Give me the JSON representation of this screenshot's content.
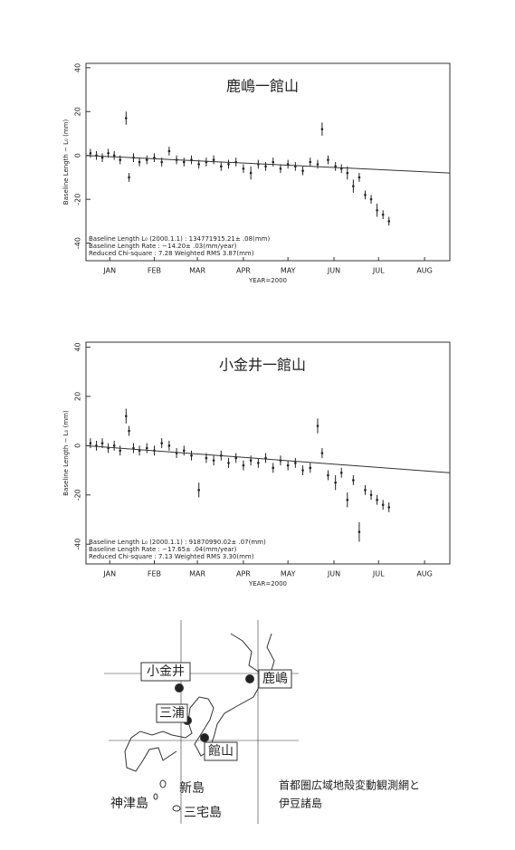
{
  "chart_data": [
    {
      "type": "scatter",
      "title": "鹿嶋一館山",
      "ylabel": "Baseline Length − L₀ (mm)",
      "xlabel": "YEAR=2000",
      "annotations": [
        "Baseline Length L₀ (2000.1.1) :    134771915.21± .08(mm)",
        "Baseline Length Rate : −14.20± .03(mm/year)",
        "Reduced Chi-square :  7.28  Weighted RMS  3.87(mm)"
      ],
      "xlim": [
        0,
        245
      ],
      "ylim": [
        -48,
        42
      ],
      "xticks": [
        {
          "value": 16,
          "label": "JAN"
        },
        {
          "value": 46,
          "label": "FEB"
        },
        {
          "value": 75,
          "label": "MAR"
        },
        {
          "value": 106,
          "label": "APR"
        },
        {
          "value": 136,
          "label": "MAY"
        },
        {
          "value": 167,
          "label": "JUN"
        },
        {
          "value": 197,
          "label": "JUL"
        },
        {
          "value": 228,
          "label": "AUG"
        }
      ],
      "yticks": [
        40,
        20,
        0,
        -20,
        -40
      ],
      "x": [
        3,
        7,
        11,
        15,
        19,
        23,
        27,
        29,
        32,
        36,
        41,
        46,
        51,
        56,
        61,
        66,
        71,
        76,
        81,
        86,
        91,
        96,
        101,
        106,
        111,
        116,
        121,
        126,
        131,
        136,
        141,
        146,
        151,
        156,
        159,
        163,
        168,
        172,
        176,
        180,
        184,
        188,
        192,
        196,
        200,
        204
      ],
      "values": [
        1,
        0,
        -1,
        1,
        0,
        -2,
        17,
        -10,
        -1,
        -3,
        -2,
        -1,
        -3,
        2,
        -2,
        -3,
        -2,
        -4,
        -3,
        -2,
        -5,
        -4,
        -3,
        -6,
        -8,
        -4,
        -5,
        -3,
        -6,
        -4,
        -5,
        -7,
        -3,
        -4,
        12,
        -2,
        -5,
        -6,
        -8,
        -14,
        -10,
        -18,
        -20,
        -25,
        -27,
        -30
      ],
      "errors": [
        2,
        2,
        2,
        2,
        2,
        2,
        3,
        2,
        2,
        2,
        2,
        2,
        2,
        2,
        2,
        2,
        2,
        2,
        2,
        2,
        2,
        2,
        2,
        2,
        3,
        2,
        2,
        2,
        2,
        2,
        2,
        2,
        2,
        2,
        3,
        2,
        2,
        2,
        3,
        3,
        2,
        2,
        2,
        3,
        2,
        2
      ],
      "trend_x": [
        0,
        245
      ],
      "trend_values": [
        0,
        -8
      ],
      "color": "#222"
    },
    {
      "type": "scatter",
      "title": "小金井一館山",
      "ylabel": "Baseline Length − L₀ (mm)",
      "xlabel": "YEAR=2000",
      "annotations": [
        "Baseline Length L₀ (2000.1.1) :    91870990.02± .07(mm)",
        "Baseline Length Rate : −17.65± .04(mm/year)",
        "Reduced Chi-square :  7.13  Weighted RMS  3.30(mm)"
      ],
      "xlim": [
        0,
        245
      ],
      "ylim": [
        -48,
        42
      ],
      "xticks": [
        {
          "value": 16,
          "label": "JAN"
        },
        {
          "value": 46,
          "label": "FEB"
        },
        {
          "value": 75,
          "label": "MAR"
        },
        {
          "value": 106,
          "label": "APR"
        },
        {
          "value": 136,
          "label": "MAY"
        },
        {
          "value": 167,
          "label": "JUN"
        },
        {
          "value": 197,
          "label": "JUL"
        },
        {
          "value": 228,
          "label": "AUG"
        }
      ],
      "yticks": [
        40,
        20,
        0,
        -20,
        -40
      ],
      "x": [
        3,
        7,
        11,
        15,
        19,
        23,
        27,
        29,
        32,
        36,
        41,
        46,
        51,
        56,
        61,
        66,
        71,
        76,
        81,
        86,
        91,
        96,
        101,
        106,
        111,
        116,
        121,
        126,
        131,
        136,
        141,
        146,
        151,
        156,
        159,
        163,
        168,
        172,
        176,
        180,
        184,
        188,
        192,
        196,
        200,
        204
      ],
      "values": [
        1,
        0,
        1,
        -1,
        0,
        -2,
        12,
        6,
        -1,
        -2,
        -1,
        -2,
        1,
        0,
        -3,
        -2,
        -4,
        -18,
        -5,
        -6,
        -4,
        -7,
        -5,
        -8,
        -6,
        -7,
        -5,
        -9,
        -6,
        -8,
        -7,
        -10,
        -9,
        8,
        -3,
        -12,
        -15,
        -11,
        -22,
        -14,
        -35,
        -18,
        -20,
        -22,
        -24,
        -25
      ],
      "errors": [
        2,
        2,
        2,
        2,
        2,
        2,
        3,
        2,
        2,
        2,
        2,
        2,
        2,
        2,
        2,
        2,
        2,
        3,
        2,
        2,
        2,
        2,
        2,
        2,
        2,
        2,
        2,
        2,
        2,
        2,
        2,
        2,
        2,
        3,
        2,
        2,
        3,
        2,
        3,
        2,
        4,
        2,
        2,
        2,
        2,
        2
      ],
      "trend_x": [
        0,
        245
      ],
      "trend_values": [
        0,
        -11
      ],
      "color": "#222"
    }
  ],
  "map": {
    "labels": {
      "koganei": "小金井",
      "kashima": "鹿嶋",
      "miura": "三浦",
      "tateyama": "館山",
      "niijima": "新島",
      "kozushima": "神津島",
      "miyakejima": "三宅島"
    },
    "caption": [
      "首都圏広域地殻変動観測網と",
      "伊豆諸島"
    ]
  }
}
